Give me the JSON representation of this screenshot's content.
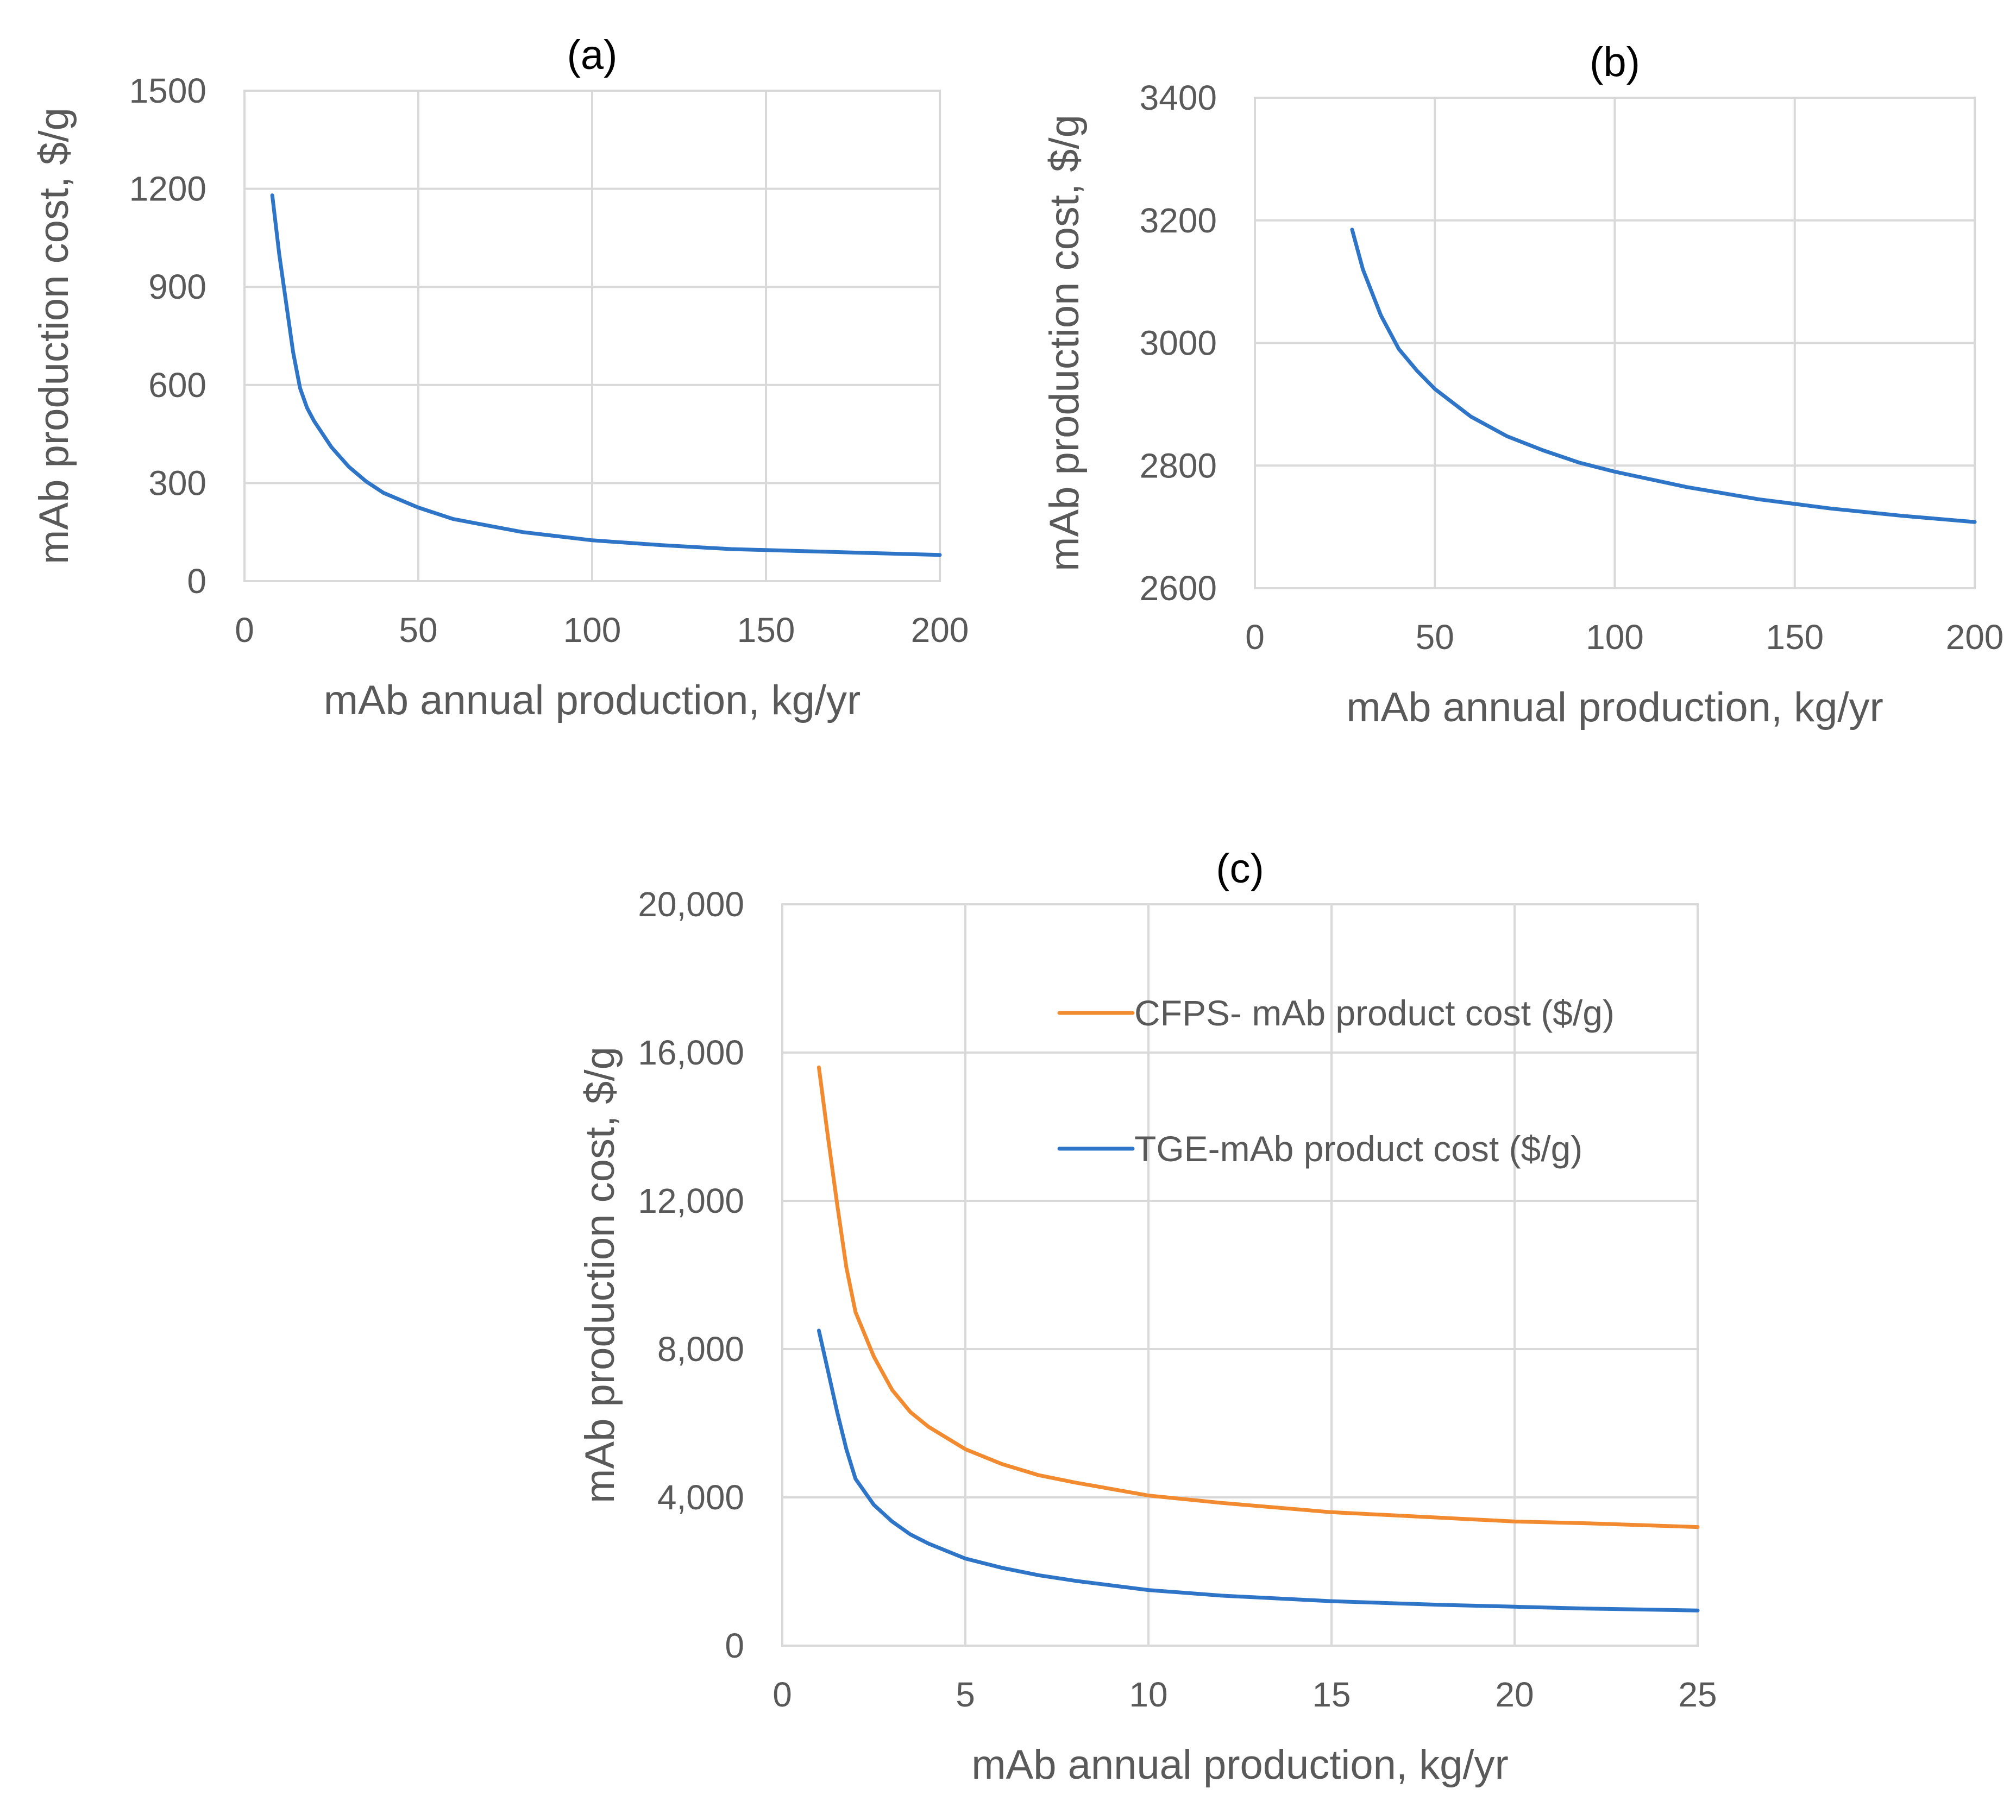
{
  "chart_data": [
    {
      "id": "a",
      "type": "line",
      "title": "(a)",
      "xlabel": "mAb annual production, kg/yr",
      "ylabel": "mAb production cost, $/g",
      "xlim": [
        0,
        200
      ],
      "ylim": [
        0,
        1500
      ],
      "xticks": [
        0,
        50,
        100,
        150,
        200
      ],
      "yticks": [
        0,
        300,
        600,
        900,
        1200,
        1500
      ],
      "xtick_labels": [
        "0",
        "50",
        "100",
        "150",
        "200"
      ],
      "ytick_labels": [
        "0",
        "300",
        "600",
        "900",
        "1200",
        "1500"
      ],
      "grid": true,
      "series": [
        {
          "name": "mAb production cost",
          "color": "#2e75c8",
          "x": [
            8,
            10,
            12,
            14,
            16,
            18,
            20,
            25,
            30,
            35,
            40,
            50,
            60,
            70,
            80,
            100,
            120,
            140,
            160,
            180,
            200
          ],
          "y": [
            1180,
            1000,
            850,
            700,
            590,
            530,
            490,
            410,
            350,
            305,
            270,
            225,
            190,
            170,
            150,
            125,
            110,
            98,
            92,
            86,
            80
          ]
        }
      ]
    },
    {
      "id": "b",
      "type": "line",
      "title": "(b)",
      "xlabel": "mAb annual production, kg/yr",
      "ylabel": "mAb production cost, $/g",
      "xlim": [
        0,
        200
      ],
      "ylim": [
        2600,
        3400
      ],
      "xticks": [
        0,
        50,
        100,
        150,
        200
      ],
      "yticks": [
        2600,
        2800,
        3000,
        3200,
        3400
      ],
      "xtick_labels": [
        "0",
        "50",
        "100",
        "150",
        "200"
      ],
      "ytick_labels": [
        "2600",
        "2800",
        "3000",
        "3200",
        "3400"
      ],
      "grid": true,
      "series": [
        {
          "name": "mAb production cost",
          "color": "#2e75c8",
          "x": [
            27,
            30,
            35,
            40,
            45,
            50,
            60,
            70,
            80,
            90,
            100,
            120,
            140,
            160,
            180,
            200
          ],
          "y": [
            3185,
            3120,
            3045,
            2990,
            2955,
            2925,
            2880,
            2848,
            2825,
            2805,
            2790,
            2765,
            2745,
            2730,
            2718,
            2708
          ]
        }
      ]
    },
    {
      "id": "c",
      "type": "line",
      "title": "(c)",
      "xlabel": "mAb annual production, kg/yr",
      "ylabel": "mAb production cost, $/g",
      "xlim": [
        0,
        25
      ],
      "ylim": [
        0,
        20000
      ],
      "xticks": [
        0,
        5,
        10,
        15,
        20,
        25
      ],
      "yticks": [
        0,
        4000,
        8000,
        12000,
        16000,
        20000
      ],
      "xtick_labels": [
        "0",
        "5",
        "10",
        "15",
        "20",
        "25"
      ],
      "ytick_labels": [
        "0",
        "4,000",
        "8,000",
        "12,000",
        "16,000",
        "20,000"
      ],
      "grid": true,
      "legend_position": "top-right",
      "series": [
        {
          "name": "CFPS- mAb product cost  ($/g)",
          "color": "#f28a30",
          "x": [
            1,
            1.25,
            1.5,
            1.75,
            2,
            2.5,
            3,
            3.5,
            4,
            5,
            6,
            7,
            8,
            10,
            12,
            15,
            18,
            20,
            22,
            25
          ],
          "y": [
            15600,
            13700,
            11900,
            10200,
            9000,
            7800,
            6900,
            6300,
            5900,
            5300,
            4900,
            4600,
            4400,
            4050,
            3850,
            3600,
            3450,
            3350,
            3300,
            3200
          ]
        },
        {
          "name": "TGE-mAb product cost ($/g)",
          "color": "#2e75c8",
          "x": [
            1,
            1.25,
            1.5,
            1.75,
            2,
            2.5,
            3,
            3.5,
            4,
            5,
            6,
            7,
            8,
            10,
            12,
            15,
            18,
            20,
            22,
            25
          ],
          "y": [
            8500,
            7400,
            6300,
            5300,
            4500,
            3800,
            3350,
            3000,
            2750,
            2350,
            2100,
            1900,
            1750,
            1500,
            1350,
            1200,
            1100,
            1050,
            1000,
            950
          ]
        }
      ]
    }
  ]
}
